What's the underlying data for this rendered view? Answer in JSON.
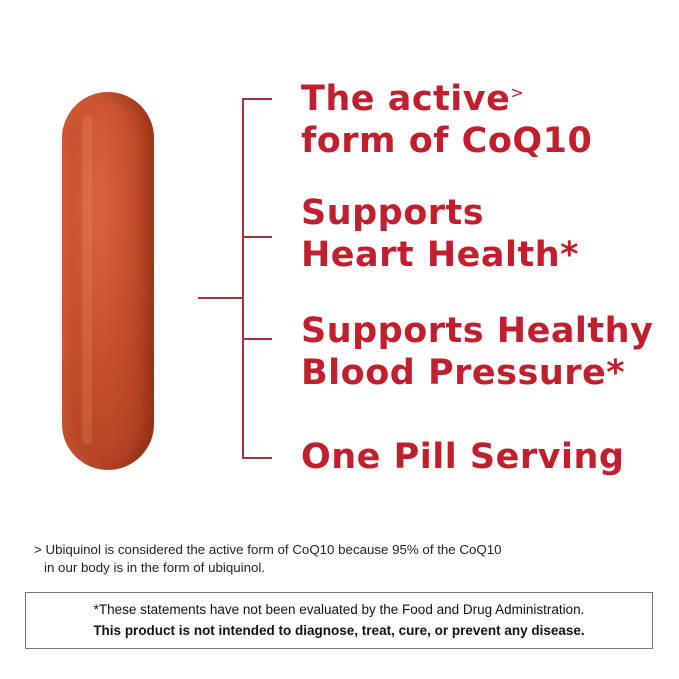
{
  "claims": [
    {
      "line1": "The active",
      "marker": ">",
      "line2": "form of CoQ10"
    },
    {
      "line1": "Supports",
      "line2": "Heart Health*"
    },
    {
      "line1": "Supports Healthy",
      "line2": "Blood Pressure*"
    },
    {
      "line1": "One Pill Serving"
    }
  ],
  "footnote": {
    "marker": ">",
    "line1": "Ubiquinol is considered the active form of CoQ10 because 95% of the CoQ10",
    "line2": "in our body is in the form of ubiquinol."
  },
  "disclaimer": {
    "line1": "*These statements have not been evaluated by the Food and Drug Administration.",
    "line2": "This product is not intended to diagnose, treat, cure, or prevent any disease."
  },
  "colors": {
    "accent": "#c0202e",
    "pill": "#c44e2a"
  }
}
